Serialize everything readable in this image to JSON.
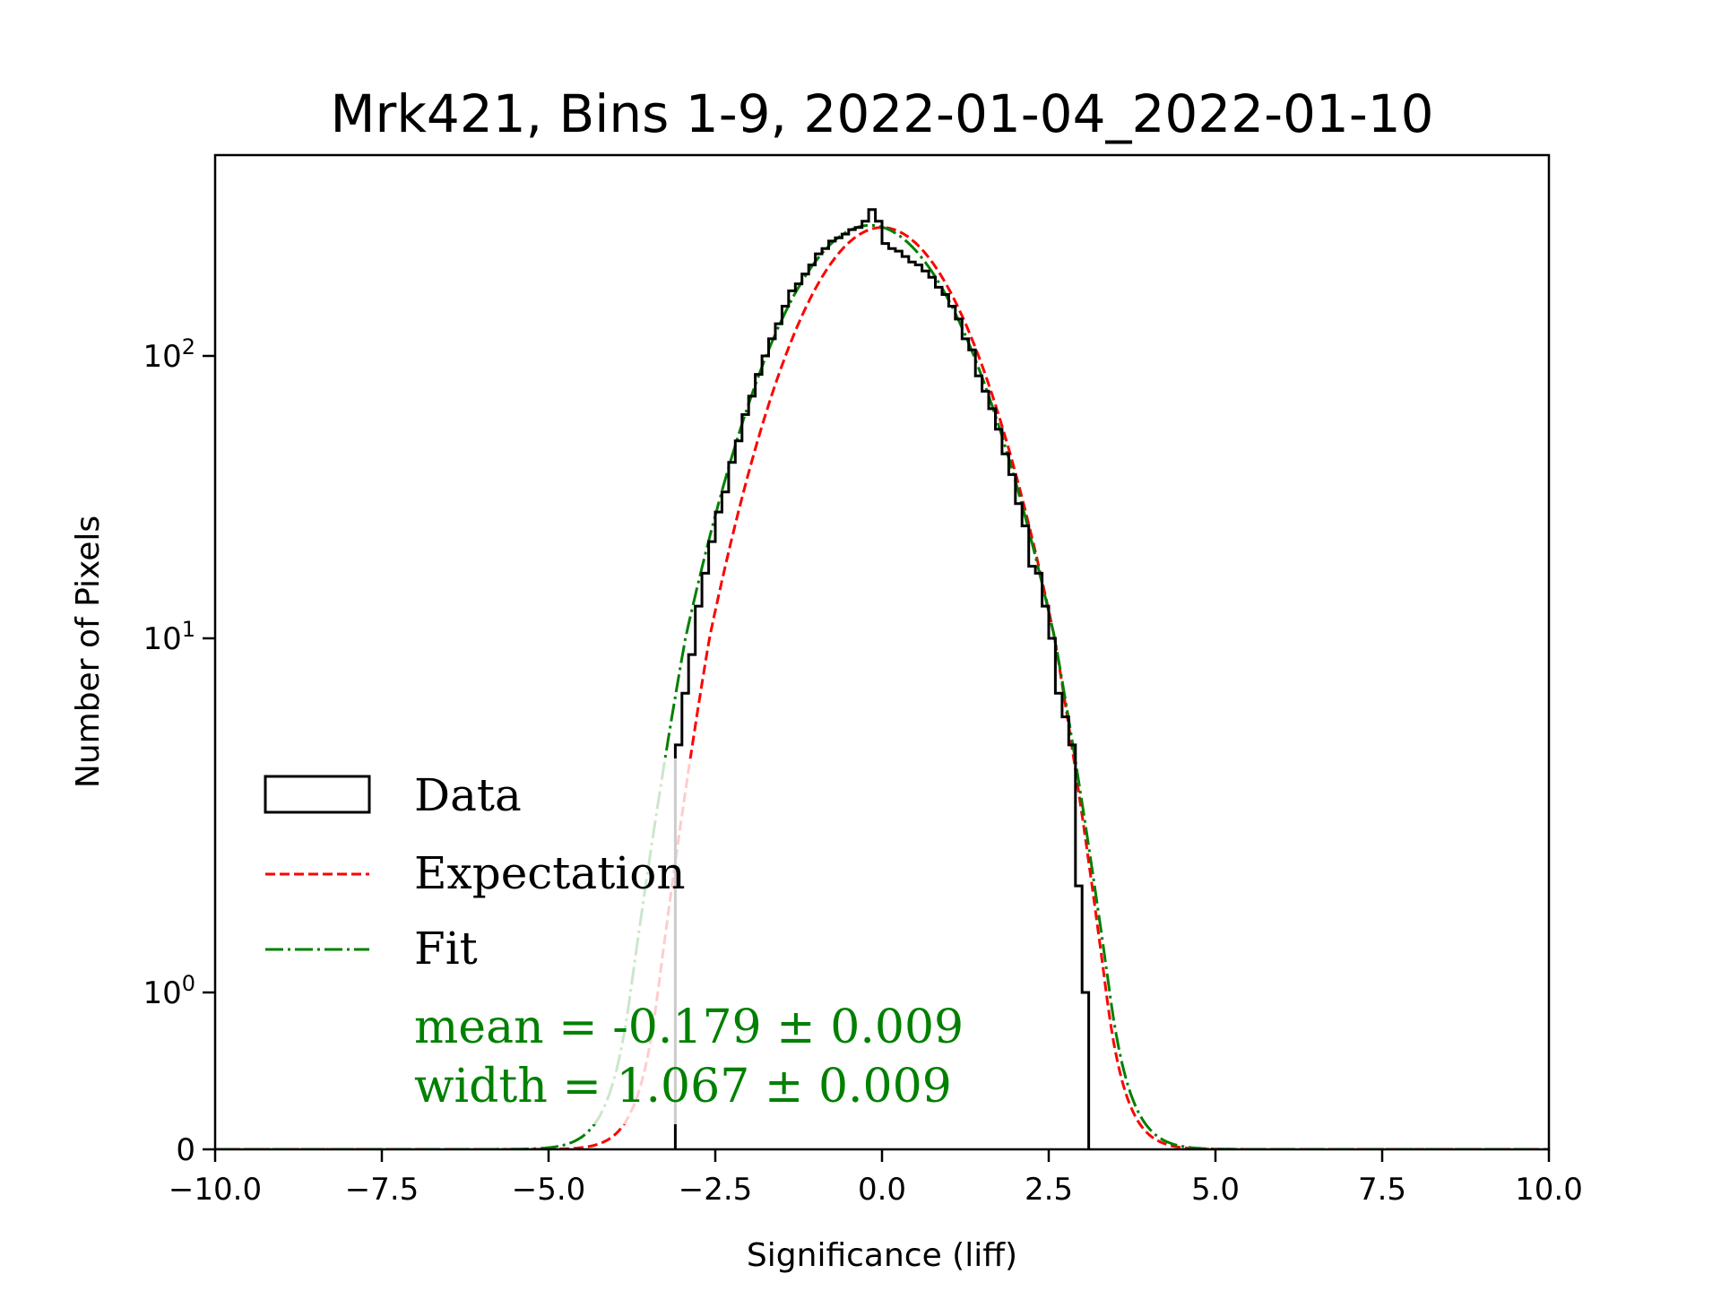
{
  "chart_data": {
    "type": "histogram",
    "title": "Mrk421, Bins 1-9, 2022-01-04_2022-01-10",
    "xlabel": "Significance (liff)",
    "ylabel": "Number of Pixels",
    "xlim": [
      -10.0,
      10.0
    ],
    "yscale": "symlog",
    "ylim": [
      0,
      420
    ],
    "x_ticks": [
      -10.0,
      -7.5,
      -5.0,
      -2.5,
      0.0,
      2.5,
      5.0,
      7.5,
      10.0
    ],
    "x_tick_labels": [
      "−10.0",
      "−7.5",
      "−5.0",
      "−2.5",
      "0.0",
      "2.5",
      "5.0",
      "7.5",
      "10.0"
    ],
    "y_ticks": [
      {
        "value": 0,
        "base": "0",
        "exp": ""
      },
      {
        "value": 1,
        "base": "10",
        "exp": "0"
      },
      {
        "value": 10,
        "base": "10",
        "exp": "1"
      },
      {
        "value": 100,
        "base": "10",
        "exp": "2"
      }
    ],
    "grid": false,
    "legend_position": "lower-left",
    "colors": {
      "data": "#000000",
      "expectation": "#ff0000",
      "fit": "#008000"
    },
    "series": [
      {
        "name": "Data",
        "kind": "step",
        "bin_start": -3.1,
        "bin_width": 0.1,
        "counts": [
          5,
          7,
          9,
          13,
          17,
          22,
          28,
          33,
          42,
          50,
          62,
          72,
          86,
          100,
          115,
          130,
          150,
          170,
          180,
          195,
          210,
          230,
          240,
          255,
          262,
          270,
          280,
          285,
          300,
          330,
          300,
          250,
          240,
          235,
          225,
          215,
          210,
          200,
          190,
          175,
          165,
          150,
          135,
          115,
          105,
          85,
          75,
          65,
          55,
          45,
          38,
          30,
          25,
          18,
          17,
          13,
          10,
          7,
          6,
          5,
          2,
          1
        ]
      },
      {
        "name": "Expectation",
        "kind": "gaussian",
        "mean": 0.0,
        "width": 1.0,
        "amplitude": 285,
        "style": "dashed"
      },
      {
        "name": "Fit",
        "kind": "gaussian",
        "mean": -0.179,
        "width": 1.067,
        "amplitude": 290,
        "style": "dashdot"
      }
    ],
    "legend": [
      "Data",
      "Expectation",
      "Fit"
    ],
    "annotations": [
      "mean = -0.179 ± 0.009",
      "width = 1.067 ± 0.009"
    ]
  }
}
